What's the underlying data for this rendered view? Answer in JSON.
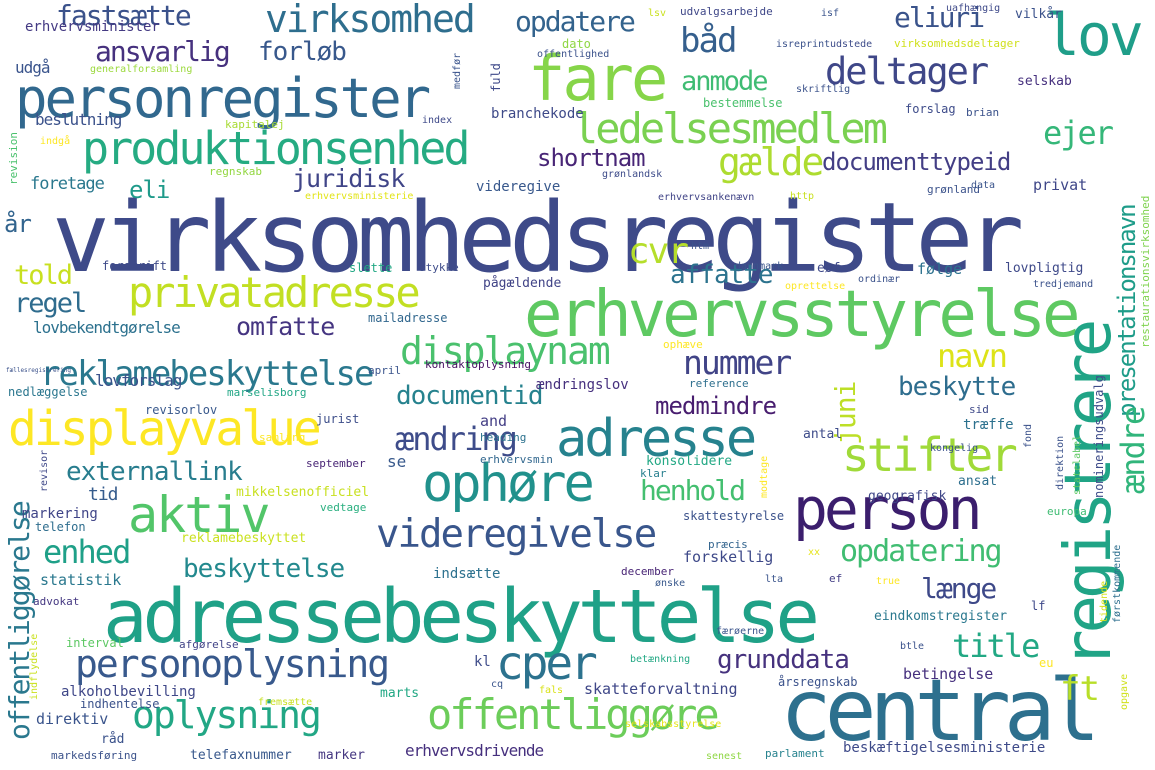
{
  "words": [
    {
      "text": "virksomhedsregister",
      "color": "#3e4a89"
    },
    {
      "text": "adressebeskyttelse",
      "color": "#1fa187"
    },
    {
      "text": "erhvervsstyrelse",
      "color": "#5ec962"
    },
    {
      "text": "central",
      "color": "#2d708e"
    },
    {
      "text": "personregister",
      "color": "#31688e"
    },
    {
      "text": "registrere",
      "color": "#20a486"
    },
    {
      "text": "fare",
      "color": "#86d549"
    },
    {
      "text": "lov",
      "color": "#1f9e89"
    },
    {
      "text": "adresse",
      "color": "#26828e"
    },
    {
      "text": "person",
      "color": "#3b1e6d"
    },
    {
      "text": "displayvalue",
      "color": "#fde725"
    },
    {
      "text": "privatadresse",
      "color": "#c2df23"
    },
    {
      "text": "produktionsenhed",
      "color": "#25ab82"
    },
    {
      "text": "ledelsesmedlem",
      "color": "#7ad151"
    },
    {
      "text": "ophøre",
      "color": "#21918c"
    },
    {
      "text": "aktiv",
      "color": "#52c569"
    },
    {
      "text": "reklamebeskyttelse",
      "color": "#2a788e"
    },
    {
      "text": "displaynam",
      "color": "#4ac16d"
    },
    {
      "text": "offentliggøre",
      "color": "#6ccd5a"
    },
    {
      "text": "videregivelse",
      "color": "#39568c"
    },
    {
      "text": "virksomhed",
      "color": "#2e6e8e"
    },
    {
      "text": "deltager",
      "color": "#3f4788"
    },
    {
      "text": "cper",
      "color": "#2c728e"
    },
    {
      "text": "stifter",
      "color": "#a0da39"
    },
    {
      "text": "gælde",
      "color": "#addc30"
    },
    {
      "text": "personoplysning",
      "color": "#38598c"
    },
    {
      "text": "oplysning",
      "color": "#22a785"
    },
    {
      "text": "offentliggørelse",
      "color": "#2a788e"
    },
    {
      "text": "presentationsnavn",
      "color": "#1e9c89"
    },
    {
      "text": "documenttypeid",
      "color": "#433e85"
    },
    {
      "text": "båd",
      "color": "#355f8d"
    },
    {
      "text": "ejer",
      "color": "#35b779"
    },
    {
      "text": "eliuri",
      "color": "#3a538b"
    },
    {
      "text": "opdatere",
      "color": "#33638d"
    },
    {
      "text": "fastsætte",
      "color": "#3b528b"
    },
    {
      "text": "ansvarlig",
      "color": "#46317e"
    },
    {
      "text": "forløb",
      "color": "#38588c"
    },
    {
      "text": "anmode",
      "color": "#3fbc73"
    },
    {
      "text": "shortnam",
      "color": "#482576"
    },
    {
      "text": "juridisk",
      "color": "#404588"
    },
    {
      "text": "eli",
      "color": "#1f9a8a"
    },
    {
      "text": "cvr",
      "color": "#b5de2b"
    },
    {
      "text": "affatte",
      "color": "#2c738e"
    },
    {
      "text": "told",
      "color": "#c8e020"
    },
    {
      "text": "regel",
      "color": "#2f6c8e"
    },
    {
      "text": "omfatte",
      "color": "#453581"
    },
    {
      "text": "navn",
      "color": "#dde318"
    },
    {
      "text": "nummer",
      "color": "#414487"
    },
    {
      "text": "documentid",
      "color": "#26828e"
    },
    {
      "text": "medmindre",
      "color": "#481d6f"
    },
    {
      "text": "beskytte",
      "color": "#2e6d8e"
    },
    {
      "text": "ændring",
      "color": "#3e4c8a"
    },
    {
      "text": "juni",
      "color": "#bddf26"
    },
    {
      "text": "ændre",
      "color": "#31b57b"
    },
    {
      "text": "externallink",
      "color": "#287d8e"
    },
    {
      "text": "henhold",
      "color": "#44bf70"
    },
    {
      "text": "enhed",
      "color": "#1fa088"
    },
    {
      "text": "beskyttelse",
      "color": "#23898e"
    },
    {
      "text": "opdatering",
      "color": "#40bd72"
    },
    {
      "text": "længe",
      "color": "#3e4989"
    },
    {
      "text": "title",
      "color": "#22a884"
    },
    {
      "text": "grunddata",
      "color": "#46327e"
    },
    {
      "text": "ft",
      "color": "#b8de29"
    },
    {
      "text": "år",
      "color": "#32648e"
    },
    {
      "text": "tid",
      "color": "#365c8d"
    },
    {
      "text": "udgå",
      "color": "#3a548c"
    },
    {
      "text": "generalforsamling",
      "color": "#9bd93c"
    },
    {
      "text": "beslutning",
      "color": "#3b528b"
    },
    {
      "text": "kapitalej",
      "color": "#a8db34"
    },
    {
      "text": "indgå",
      "color": "#fde725"
    },
    {
      "text": "foretage",
      "color": "#2a788e"
    },
    {
      "text": "erhvervsminister",
      "color": "#443a83"
    },
    {
      "text": "regnskab",
      "color": "#93d741"
    },
    {
      "text": "erhvervsministerie",
      "color": "#e2e418"
    },
    {
      "text": "revision",
      "color": "#4ac16d"
    },
    {
      "text": "forskrift",
      "color": "#3e4a89"
    },
    {
      "text": "lovbekendtgørelse",
      "color": "#2c718e"
    },
    {
      "text": "lovforslag",
      "color": "#3b528b"
    },
    {
      "text": "nedlæggelse",
      "color": "#2a768e"
    },
    {
      "text": "revisorlov",
      "color": "#38588c"
    },
    {
      "text": "marselisborg",
      "color": "#21a685"
    },
    {
      "text": "mailadresse",
      "color": "#31678e"
    },
    {
      "text": "kontaktoplysning",
      "color": "#471063"
    },
    {
      "text": "april",
      "color": "#3a548c"
    },
    {
      "text": "ophæve",
      "color": "#fde725"
    },
    {
      "text": "ændringslov",
      "color": "#46307e"
    },
    {
      "text": "reference",
      "color": "#2e6f8e"
    },
    {
      "text": "and",
      "color": "#433e85"
    },
    {
      "text": "heading",
      "color": "#2c728e"
    },
    {
      "text": "september",
      "color": "#482475"
    },
    {
      "text": "se",
      "color": "#38598c"
    },
    {
      "text": "erhvervsmin",
      "color": "#31678e"
    },
    {
      "text": "jurist",
      "color": "#3d4e8a"
    },
    {
      "text": "samling",
      "color": "#fde725"
    },
    {
      "text": "klar",
      "color": "#277f8e"
    },
    {
      "text": "mikkelsenofficiel",
      "color": "#c8e020"
    },
    {
      "text": "vedtage",
      "color": "#29af7f"
    },
    {
      "text": "markering",
      "color": "#404588"
    },
    {
      "text": "telefon",
      "color": "#2e6d8e"
    },
    {
      "text": "revisor",
      "color": "#3f4889"
    },
    {
      "text": "reklamebeskyttet",
      "color": "#cae11f"
    },
    {
      "text": "statistik",
      "color": "#2a788e"
    },
    {
      "text": "advokat",
      "color": "#453882"
    },
    {
      "text": "interval",
      "color": "#5cc863"
    },
    {
      "text": "afgørelse",
      "color": "#414487"
    },
    {
      "text": "indhentelse",
      "color": "#3b528b"
    },
    {
      "text": "fremsætte",
      "color": "#c8e020"
    },
    {
      "text": "direktiv",
      "color": "#3a548c"
    },
    {
      "text": "råd",
      "color": "#3b528b"
    },
    {
      "text": "markedsføring",
      "color": "#3b528b"
    },
    {
      "text": "telefaxnummer",
      "color": "#38588c"
    },
    {
      "text": "marker",
      "color": "#453781"
    },
    {
      "text": "erhvervsdrivende",
      "color": "#46307e"
    },
    {
      "text": "alkoholbevilling",
      "color": "#3f4788"
    },
    {
      "text": "indflydelse",
      "color": "#cae11f"
    },
    {
      "text": "marts",
      "color": "#22a884"
    },
    {
      "text": "skatteforvaltning",
      "color": "#3f4788"
    },
    {
      "text": "årsregnskab",
      "color": "#3b528b"
    },
    {
      "text": "betingelse",
      "color": "#46307e"
    },
    {
      "text": "beskæftigelsesministerie",
      "color": "#3e4a89"
    },
    {
      "text": "parlament",
      "color": "#26828e"
    },
    {
      "text": "senest",
      "color": "#8fd744"
    },
    {
      "text": "selskabsstyrelse",
      "color": "#e5e419"
    },
    {
      "text": "kl",
      "color": "#3e4c8a"
    },
    {
      "text": "cq",
      "color": "#3a548c"
    },
    {
      "text": "fals",
      "color": "#d8e219"
    },
    {
      "text": "betænkning",
      "color": "#22a884"
    },
    {
      "text": "færøerne",
      "color": "#3a548c"
    },
    {
      "text": "btle",
      "color": "#3b528b"
    },
    {
      "text": "eu",
      "color": "#fde725"
    },
    {
      "text": "opgave",
      "color": "#d0e11c"
    },
    {
      "text": "lf",
      "color": "#3e4989"
    },
    {
      "text": "eindkomstregister",
      "color": "#2a788e"
    },
    {
      "text": "true",
      "color": "#fde725"
    },
    {
      "text": "ef",
      "color": "#433e85"
    },
    {
      "text": "lta",
      "color": "#3a548c"
    },
    {
      "text": "ønske",
      "color": "#38588c"
    },
    {
      "text": "december",
      "color": "#482475"
    },
    {
      "text": "indsætte",
      "color": "#2c718e"
    },
    {
      "text": "forskellig",
      "color": "#3e4989"
    },
    {
      "text": "præcis",
      "color": "#32648e"
    },
    {
      "text": "xx",
      "color": "#e5e419"
    },
    {
      "text": "skattestyrelse",
      "color": "#3b528b"
    },
    {
      "text": "europa",
      "color": "#3fbc73"
    },
    {
      "text": "geografisk",
      "color": "#3f4788"
    },
    {
      "text": "ansat",
      "color": "#2e6f8e"
    },
    {
      "text": "konsolidere",
      "color": "#22a884"
    },
    {
      "text": "antal",
      "color": "#3e4c8a"
    },
    {
      "text": "træffe",
      "color": "#2c718e"
    },
    {
      "text": "kongelig",
      "color": "#3b528b"
    },
    {
      "text": "sid",
      "color": "#3e4989"
    },
    {
      "text": "fond",
      "color": "#3b528b"
    },
    {
      "text": "modtage",
      "color": "#fde725"
    },
    {
      "text": "direktion",
      "color": "#3b528b"
    },
    {
      "text": "statelabel",
      "color": "#5ec962"
    },
    {
      "text": "nomineringsudvalg",
      "color": "#3e4c8a"
    },
    {
      "text": "tidende",
      "color": "#d8e219"
    },
    {
      "text": "førstkommende",
      "color": "#2e6f8e"
    },
    {
      "text": "restaurationsvirksomhed",
      "color": "#7fd34e"
    },
    {
      "text": "pågældende",
      "color": "#414487"
    },
    {
      "text": "dannmark",
      "color": "#3a548c"
    },
    {
      "text": "stykke",
      "color": "#3e4c8a"
    },
    {
      "text": "slette",
      "color": "#22a884"
    },
    {
      "text": "htm",
      "color": "#3b528b"
    },
    {
      "text": "eøf",
      "color": "#3e4989"
    },
    {
      "text": "ordinær",
      "color": "#3b528b"
    },
    {
      "text": "følge",
      "color": "#2c718e"
    },
    {
      "text": "lovpligtig",
      "color": "#3e4989"
    },
    {
      "text": "tredjemand",
      "color": "#3b528b"
    },
    {
      "text": "oprettelse",
      "color": "#fde725"
    },
    {
      "text": "videregive",
      "color": "#38588c"
    },
    {
      "text": "grønlandsk",
      "color": "#3e4c8a"
    },
    {
      "text": "erhvervsankenævn",
      "color": "#414487"
    },
    {
      "text": "grønland",
      "color": "#3b528b"
    },
    {
      "text": "data",
      "color": "#3a548c"
    },
    {
      "text": "privat",
      "color": "#3f4788"
    },
    {
      "text": "http",
      "color": "#c8e020"
    },
    {
      "text": "branchekode",
      "color": "#3e4a89"
    },
    {
      "text": "index",
      "color": "#3e4989"
    },
    {
      "text": "bestemmelse",
      "color": "#4ac16d"
    },
    {
      "text": "skriftlig",
      "color": "#3b528b"
    },
    {
      "text": "forslag",
      "color": "#3e4c8a"
    },
    {
      "text": "brian",
      "color": "#3b528b"
    },
    {
      "text": "selskab",
      "color": "#46307e"
    },
    {
      "text": "fuld",
      "color": "#3e4989"
    },
    {
      "text": "medfør",
      "color": "#3a548c"
    },
    {
      "text": "offentlighed",
      "color": "#3b528b"
    },
    {
      "text": "dato",
      "color": "#8fd744"
    },
    {
      "text": "isreprint",
      "color": "#3b528b"
    },
    {
      "text": "udstede",
      "color": "#3e4c8a"
    },
    {
      "text": "virksomhedsdeltager",
      "color": "#d0e11c"
    },
    {
      "text": "udvalgsarbejde",
      "color": "#3f4788"
    },
    {
      "text": "lsv",
      "color": "#cae11f"
    },
    {
      "text": "isf",
      "color": "#3a548c"
    },
    {
      "text": "uafhængig",
      "color": "#3e4989"
    },
    {
      "text": "vilkår",
      "color": "#3b528b"
    },
    {
      "text": "fællesregistrering",
      "color": "#3b528b"
    }
  ]
}
